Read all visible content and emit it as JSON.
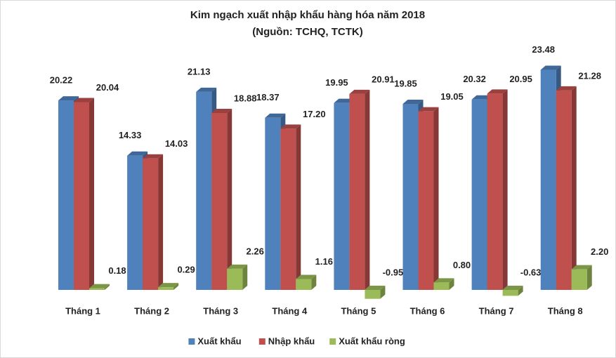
{
  "chart_data": {
    "type": "bar3d",
    "title": "Kim ngạch xuất nhập khẩu hàng hóa năm 2018",
    "subtitle": "(Nguồn: TCHQ, TCTK)",
    "categories": [
      "Tháng 1",
      "Tháng 2",
      "Tháng 3",
      "Tháng 4",
      "Tháng 5",
      "Tháng 6",
      "Tháng 7",
      "Tháng 8"
    ],
    "series": [
      {
        "name": "Xuất khẩu",
        "color": "#4f81bd",
        "values": [
          20.22,
          14.33,
          21.13,
          18.37,
          19.95,
          19.85,
          20.32,
          23.48
        ],
        "value_labels": [
          "20.22",
          "14.33",
          "21.13",
          "18.37",
          "19.95",
          "19.85",
          "20.32",
          "23.48"
        ]
      },
      {
        "name": "Nhập khẩu",
        "color": "#c0504d",
        "values": [
          20.04,
          14.03,
          18.88,
          17.2,
          20.91,
          19.05,
          20.95,
          21.28
        ],
        "value_labels": [
          "20.04",
          "14.03",
          "18.88",
          "17.20",
          "20.91",
          "19.05",
          "20.95",
          "21.28"
        ]
      },
      {
        "name": "Xuất khẩu ròng",
        "color": "#9bbb59",
        "values": [
          0.18,
          0.29,
          2.26,
          1.16,
          -0.95,
          0.8,
          -0.63,
          2.2
        ],
        "value_labels": [
          "0.18",
          "0.29",
          "2.26",
          "1.16",
          "-0.95",
          "0.80",
          "-0.63",
          "2.20"
        ]
      }
    ],
    "legend": "bottom"
  }
}
